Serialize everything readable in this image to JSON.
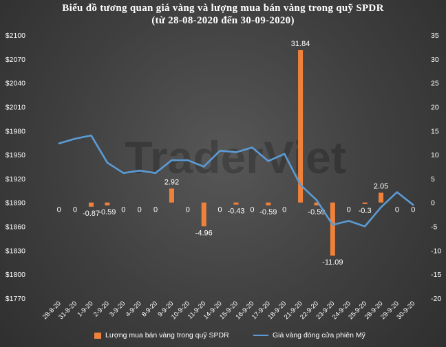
{
  "title_line1": "Biểu đồ tương quan giá vàng và lượng mua bán vàng trong quỹ SPDR",
  "title_line2": "(từ 28-08-2020 đến 30-09-2020)",
  "watermark": "TraderViet",
  "colors": {
    "bar": "#f0813a",
    "line": "#5b9bd5",
    "text": "#ffffff",
    "background": "#3d3d3d"
  },
  "chart_data": {
    "type": "bar+line",
    "categories": [
      "28-8-20",
      "31-8-20",
      "1-9-20",
      "2-9-20",
      "3-9-20",
      "4-9-20",
      "8-9-20",
      "9-9-20",
      "10-9-20",
      "11-9-20",
      "14-9-20",
      "15-9-20",
      "16-9-20",
      "17-9-20",
      "18-9-20",
      "21-9-20",
      "22-9-20",
      "23-9-20",
      "24-9-20",
      "25-9-20",
      "28-9-20",
      "29-9-20",
      "30-9-20"
    ],
    "series": [
      {
        "name": "Lượng mua bán vàng trong quỹ SPDR",
        "kind": "bar",
        "axis": "right",
        "values": [
          0,
          0,
          -0.87,
          -0.59,
          0,
          0,
          0,
          2.92,
          0,
          -4.96,
          0,
          -0.43,
          0,
          -0.59,
          0,
          31.84,
          -0.59,
          -11.09,
          0,
          -0.3,
          2.05,
          0,
          0
        ],
        "labels": [
          "0",
          "0",
          "-0.87",
          "-0.59",
          "0",
          "0",
          "0",
          "2.92",
          "0",
          "-4.96",
          "0",
          "-0.43",
          "0",
          "-0.59",
          "0",
          "31.84",
          "-0.59",
          "-11.09",
          "0",
          "-0.3",
          "2.05",
          "0",
          "0"
        ]
      },
      {
        "name": "Giá vàng đóng cửa phiên Mỹ",
        "kind": "line",
        "axis": "left",
        "values": [
          1964,
          1970,
          1974,
          1940,
          1927,
          1930,
          1927,
          1943,
          1943,
          1935,
          1955,
          1953,
          1959,
          1942,
          1951,
          1912,
          1893,
          1862,
          1867,
          1860,
          1884,
          1903,
          1887
        ]
      }
    ],
    "y_left": {
      "min": 1770,
      "max": 2100,
      "step": 30,
      "ticks": [
        "$2100",
        "$2070",
        "$2040",
        "$2010",
        "$1980",
        "$1950",
        "$1920",
        "$1890",
        "$1860",
        "$1830",
        "$1800",
        "$1770"
      ]
    },
    "y_right": {
      "min": -20,
      "max": 35,
      "step": 5,
      "ticks": [
        "35",
        "30",
        "25",
        "20",
        "15",
        "10",
        "5",
        "0",
        "-5",
        "-10",
        "-15",
        "-20"
      ]
    },
    "legend_position": "bottom"
  }
}
